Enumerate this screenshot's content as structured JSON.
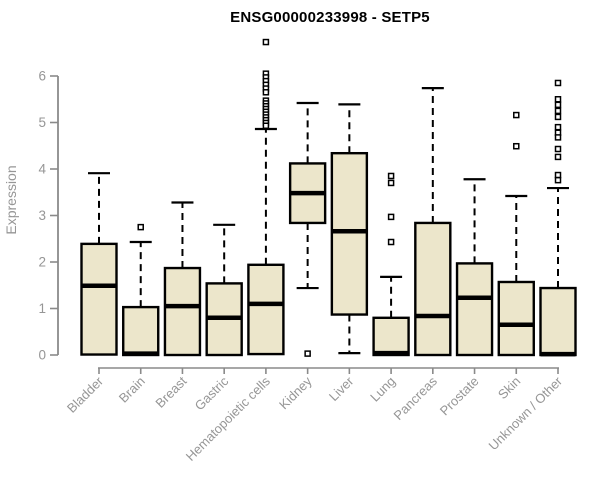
{
  "chart_data": {
    "type": "boxplot",
    "title": "ENSG00000233998 - SETP5",
    "ylabel": "Expression",
    "ylim": [
      0,
      6.9
    ],
    "yticks": [
      0,
      1,
      2,
      3,
      4,
      5,
      6
    ],
    "grid": false,
    "legend": "none",
    "categories": [
      "Bladder",
      "Brain",
      "Breast",
      "Gastric",
      "Hematopoietic cells",
      "Kidney",
      "Liver",
      "Lung",
      "Pancreas",
      "Prostate",
      "Skin",
      "Unknown / Other"
    ],
    "series": [
      {
        "name": "Bladder",
        "low": 0.01,
        "q1": 0.01,
        "median": 1.49,
        "q3": 2.39,
        "high": 3.91,
        "outliers": []
      },
      {
        "name": "Brain",
        "low": 0.0,
        "q1": 0.0,
        "median": 0.03,
        "q3": 1.03,
        "high": 2.43,
        "outliers": [
          2.75
        ]
      },
      {
        "name": "Breast",
        "low": 0.0,
        "q1": 0.0,
        "median": 1.05,
        "q3": 1.87,
        "high": 3.28,
        "outliers": []
      },
      {
        "name": "Gastric",
        "low": 0.0,
        "q1": 0.0,
        "median": 0.8,
        "q3": 1.54,
        "high": 2.8,
        "outliers": []
      },
      {
        "name": "Hematopoietic cells",
        "low": 0.02,
        "q1": 0.02,
        "median": 1.1,
        "q3": 1.94,
        "high": 4.86,
        "outliers": [
          6.73,
          6.05,
          5.97,
          5.89,
          5.81,
          5.73,
          5.65,
          5.47,
          5.41,
          5.35,
          5.29,
          5.23,
          5.17,
          5.11,
          5.05,
          4.99,
          4.93
        ]
      },
      {
        "name": "Kidney",
        "low": 1.44,
        "q1": 2.84,
        "median": 3.48,
        "q3": 4.12,
        "high": 5.42,
        "outliers": [
          0.03
        ]
      },
      {
        "name": "Liver",
        "low": 0.04,
        "q1": 0.87,
        "median": 2.66,
        "q3": 4.34,
        "high": 5.39,
        "outliers": []
      },
      {
        "name": "Lung",
        "low": 0.0,
        "q1": 0.0,
        "median": 0.04,
        "q3": 0.8,
        "high": 1.68,
        "outliers": [
          3.85,
          3.7,
          2.97,
          2.43
        ]
      },
      {
        "name": "Pancreas",
        "low": 0.0,
        "q1": 0.0,
        "median": 0.84,
        "q3": 2.84,
        "high": 5.74,
        "outliers": []
      },
      {
        "name": "Prostate",
        "low": 0.0,
        "q1": 0.0,
        "median": 1.23,
        "q3": 1.97,
        "high": 3.78,
        "outliers": []
      },
      {
        "name": "Skin",
        "low": 0.0,
        "q1": 0.0,
        "median": 0.65,
        "q3": 1.57,
        "high": 3.42,
        "outliers": [
          5.16,
          4.49
        ]
      },
      {
        "name": "Unknown / Other",
        "low": 0.0,
        "q1": 0.0,
        "median": 0.02,
        "q3": 1.44,
        "high": 3.59,
        "outliers": [
          5.85,
          5.5,
          5.38,
          5.25,
          5.12,
          4.9,
          4.78,
          4.68,
          4.43,
          4.26,
          3.87,
          3.76
        ]
      }
    ],
    "style": {
      "box_fill": "#ECE6CB",
      "box_stroke": "#000000",
      "median_color": "#000000",
      "whisker_color": "#000000",
      "outlier_stroke": "#000000",
      "axis_color": "#8a8a8a",
      "label_color": "#969696",
      "title_color": "#000000",
      "background": "#ffffff"
    }
  }
}
